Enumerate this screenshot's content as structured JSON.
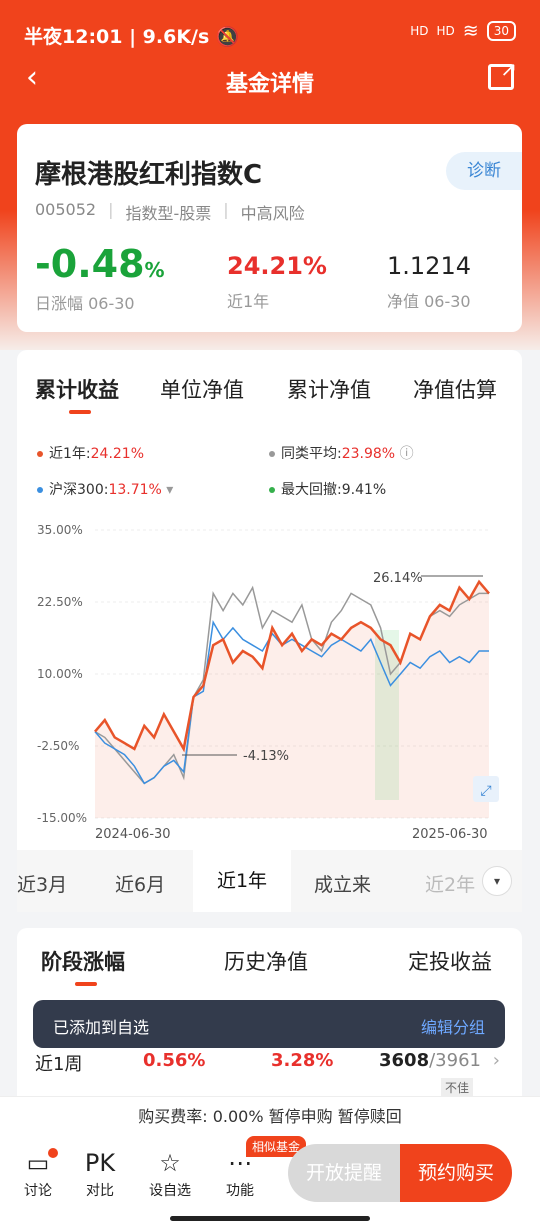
{
  "status": {
    "time": "半夜12:01",
    "speed": "9.6K/s",
    "sig1": "HD",
    "sig2": "HD",
    "battery": "30"
  },
  "nav": {
    "title": "基金详情"
  },
  "fund": {
    "name": "摩根港股红利指数C",
    "diag": "诊断",
    "code": "005052",
    "type": "指数型-股票",
    "risk": "中高风险",
    "day_change": "-0.48",
    "day_change_unit": "%",
    "day_label": "日涨幅 06-30",
    "year_return": "24.21%",
    "year_label": "近1年",
    "nav_value": "1.1214",
    "nav_label": "净值 06-30"
  },
  "chart_tabs": [
    "累计收益",
    "单位净值",
    "累计净值",
    "净值估算"
  ],
  "legend": {
    "this_label": "近1年:",
    "this_val": "24.21%",
    "peer_label": "同类平均:",
    "peer_val": "23.98%",
    "hs_label": "沪深300:",
    "hs_val": "13.71%",
    "dd_label": "最大回撤:",
    "dd_val": "9.41%"
  },
  "chart_data": {
    "type": "line",
    "x_start": "2024-06-30",
    "x_end": "2025-06-30",
    "y_ticks": [
      "35.00%",
      "22.50%",
      "10.00%",
      "-2.50%",
      "-15.00%"
    ],
    "ylim": [
      -15,
      35
    ],
    "annotations": [
      "26.14%",
      "-4.13%"
    ],
    "series": [
      {
        "name": "近1年",
        "color": "#e8542a",
        "values": [
          0,
          2,
          -1,
          -2,
          -3,
          1,
          -1,
          3,
          0,
          -3,
          6,
          8,
          15,
          16,
          12,
          14,
          13,
          11,
          18,
          15,
          17,
          14,
          16,
          15,
          17,
          16,
          18,
          19,
          18,
          16,
          15,
          12,
          17,
          16,
          20,
          22,
          21,
          25,
          23,
          26,
          24
        ]
      },
      {
        "name": "同类平均",
        "color": "#999999",
        "values": [
          0,
          -1,
          -3,
          -5,
          -7,
          -9,
          -8,
          -6,
          -4,
          -8,
          6,
          9,
          24,
          21,
          24,
          22,
          25,
          18,
          21,
          20,
          19,
          22,
          16,
          14,
          19,
          21,
          24,
          23,
          22,
          18,
          10,
          12,
          17,
          16,
          20,
          21,
          20,
          22,
          23,
          24,
          24
        ]
      },
      {
        "name": "沪深300",
        "color": "#3b8fe0",
        "values": [
          0,
          -2,
          -3,
          -4,
          -6,
          -9,
          -8,
          -6,
          -5,
          -7,
          6,
          7,
          19,
          16,
          18,
          16,
          15,
          14,
          17,
          15,
          16,
          15,
          14,
          13,
          15,
          16,
          15,
          14,
          16,
          12,
          8,
          10,
          12,
          11,
          13,
          14,
          12,
          13,
          12,
          14,
          14
        ]
      }
    ]
  },
  "ranges": [
    "近3月",
    "近6月",
    "近1年",
    "成立来",
    "近2年"
  ],
  "section": {
    "tabs": [
      "阶段涨幅",
      "历史净值",
      "定投收益"
    ],
    "row": {
      "period": "近1周",
      "ret": "0.56%",
      "avg": "3.28%",
      "rank": "3608",
      "total": "/3961",
      "tag": "不佳"
    }
  },
  "toast": {
    "text": "已添加到自选",
    "action": "编辑分组"
  },
  "fee": "购买费率: 0.00% 暂停申购 暂停赎回",
  "bottom": {
    "items": [
      "讨论",
      "对比",
      "设自选",
      "功能"
    ],
    "pk": "PK",
    "similar": "相似基金",
    "btn_alert": "开放提醒",
    "btn_buy": "预约购买"
  }
}
